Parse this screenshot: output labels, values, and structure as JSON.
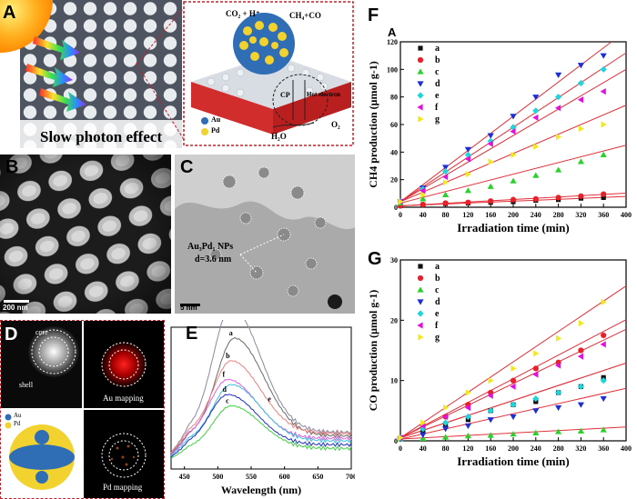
{
  "panels": {
    "A": {
      "label": "A",
      "caption": "Slow photon effect",
      "cp": "CP",
      "ht": "Hot electron",
      "reactant": "CO₂ + H⁺",
      "product": "CH₄+CO",
      "water": "H₂O",
      "oxygen": "O₂",
      "legend": [
        {
          "name": "Au",
          "color": "#2f6db5"
        },
        {
          "name": "Pd",
          "color": "#f2d22e"
        }
      ]
    },
    "B": {
      "label": "B",
      "scale": "200 nm"
    },
    "C": {
      "label": "C",
      "scale": "5 nm",
      "annotation_line1": "Au₃Pd₁ NPs",
      "annotation_line2": "d=3.6 nm"
    },
    "D": {
      "label": "D",
      "core": "core",
      "shell": "shell",
      "au_map": "Au mapping",
      "pd_map": "Pd mapping",
      "legend": [
        {
          "name": "Au",
          "color": "#2f6db5"
        },
        {
          "name": "Pd",
          "color": "#f2d22e"
        }
      ]
    },
    "F": {
      "label": "F",
      "sublabel": "A"
    },
    "G": {
      "label": "G"
    }
  },
  "colors": {
    "fit_line": "#e0303a"
  },
  "chart_data": [
    {
      "id": "F",
      "type": "scatter",
      "xlabel": "Irradiation time (min)",
      "ylabel": "CH4 production (μmol g-1)",
      "xlim": [
        0,
        400
      ],
      "ylim": [
        0,
        120
      ],
      "xticks": [
        0,
        40,
        80,
        120,
        160,
        200,
        240,
        280,
        320,
        360,
        400
      ],
      "yticks": [
        0,
        20,
        40,
        60,
        80,
        100,
        120
      ],
      "x": [
        0,
        40,
        80,
        120,
        160,
        200,
        240,
        280,
        320,
        360
      ],
      "series": [
        {
          "name": "a",
          "marker": "square",
          "color": "#111111",
          "slope": 0.017,
          "values": [
            1,
            1.5,
            2.5,
            3,
            3.5,
            4,
            5,
            5.5,
            6.5,
            7
          ]
        },
        {
          "name": "b",
          "marker": "circle",
          "color": "#e8202a",
          "slope": 0.023,
          "values": [
            1,
            2,
            3,
            3.5,
            4.5,
            5.5,
            6,
            7,
            8,
            9.5
          ]
        },
        {
          "name": "c",
          "marker": "triangle-up",
          "color": "#2bd12b",
          "slope": 0.105,
          "values": [
            3,
            6,
            9,
            12,
            15,
            19,
            23,
            27,
            33,
            38
          ]
        },
        {
          "name": "d",
          "marker": "triangle-down",
          "color": "#1c2fd6",
          "slope": 0.31,
          "values": [
            4,
            14,
            29,
            42,
            52,
            66,
            80,
            96,
            103,
            110
          ]
        },
        {
          "name": "e",
          "marker": "diamond",
          "color": "#20d4dc",
          "slope": 0.27,
          "values": [
            4,
            13,
            26,
            38,
            48,
            58,
            70,
            80,
            90,
            100
          ]
        },
        {
          "name": "f",
          "marker": "triangle-left",
          "color": "#e010e0",
          "slope": 0.24,
          "values": [
            4,
            12,
            22,
            35,
            46,
            55,
            65,
            72,
            78,
            84
          ]
        },
        {
          "name": "g",
          "marker": "triangle-right",
          "color": "#f2e820",
          "slope": 0.175,
          "values": [
            4,
            9,
            18,
            24,
            33,
            38,
            44,
            51,
            57,
            60
          ]
        }
      ]
    },
    {
      "id": "G",
      "type": "scatter",
      "xlabel": "Irradiation time (min)",
      "ylabel": "CO production (μmol g-1)",
      "xlim": [
        0,
        400
      ],
      "ylim": [
        0,
        30
      ],
      "xticks": [
        0,
        40,
        80,
        120,
        160,
        200,
        240,
        280,
        320,
        360,
        400
      ],
      "yticks": [
        0,
        10,
        20,
        30
      ],
      "x": [
        0,
        40,
        80,
        120,
        160,
        200,
        240,
        280,
        320,
        360
      ],
      "series": [
        {
          "name": "a",
          "marker": "square",
          "color": "#111111",
          "slope": 0.031,
          "values": [
            0.5,
            1.5,
            2.5,
            3.5,
            5,
            6,
            6.5,
            8,
            9,
            10.5
          ]
        },
        {
          "name": "b",
          "marker": "circle",
          "color": "#e8202a",
          "slope": 0.049,
          "values": [
            0.5,
            2.5,
            4,
            6,
            8,
            10,
            12,
            13,
            15,
            17.5
          ]
        },
        {
          "name": "c",
          "marker": "triangle-up",
          "color": "#2bd12b",
          "slope": 0.005,
          "values": [
            0.3,
            0.4,
            0.6,
            0.8,
            0.9,
            1.1,
            1.3,
            1.5,
            1.6,
            1.8
          ]
        },
        {
          "name": "d",
          "marker": "triangle-down",
          "color": "#1c2fd6",
          "slope": 0.021,
          "values": [
            0.3,
            1,
            2,
            2.5,
            3.5,
            4,
            5,
            5.5,
            6,
            7
          ]
        },
        {
          "name": "e",
          "marker": "diamond",
          "color": "#20d4dc",
          "slope": 0.031,
          "values": [
            0.5,
            2,
            3,
            4,
            5,
            6,
            7,
            8,
            9,
            10
          ]
        },
        {
          "name": "f",
          "marker": "triangle-left",
          "color": "#e010e0",
          "slope": 0.045,
          "values": [
            0.5,
            2.5,
            4,
            5.5,
            7.5,
            9,
            11,
            12.5,
            14,
            16
          ]
        },
        {
          "name": "g",
          "marker": "triangle-right",
          "color": "#f2e820",
          "slope": 0.063,
          "values": [
            0.5,
            3,
            5.5,
            8,
            10,
            12,
            14.5,
            17,
            19.5,
            23
          ]
        }
      ]
    },
    {
      "id": "E",
      "type": "line",
      "xlabel": "Wavelength (nm)",
      "ylabel": "",
      "xlim": [
        430,
        700
      ],
      "xticks": [
        450,
        500,
        550,
        600,
        650,
        700
      ],
      "series": [
        {
          "name": "g",
          "color": "#8a8aa0",
          "peak": 520,
          "height": 1.0,
          "floor": 0.25
        },
        {
          "name": "a",
          "color": "#6a6a6a",
          "peak": 525,
          "height": 0.78,
          "floor": 0.22
        },
        {
          "name": "b",
          "color": "#f08080",
          "peak": 520,
          "height": 0.58,
          "floor": 0.24
        },
        {
          "name": "f",
          "color": "#e060e0",
          "peak": 515,
          "height": 0.47,
          "floor": 0.2
        },
        {
          "name": "e",
          "color": "#40c0e0",
          "peak": 520,
          "height": 0.45,
          "floor": 0.18
        },
        {
          "name": "d",
          "color": "#2030c0",
          "peak": 515,
          "height": 0.4,
          "floor": 0.15
        },
        {
          "name": "c",
          "color": "#40d040",
          "peak": 520,
          "height": 0.34,
          "floor": 0.12
        }
      ]
    }
  ]
}
